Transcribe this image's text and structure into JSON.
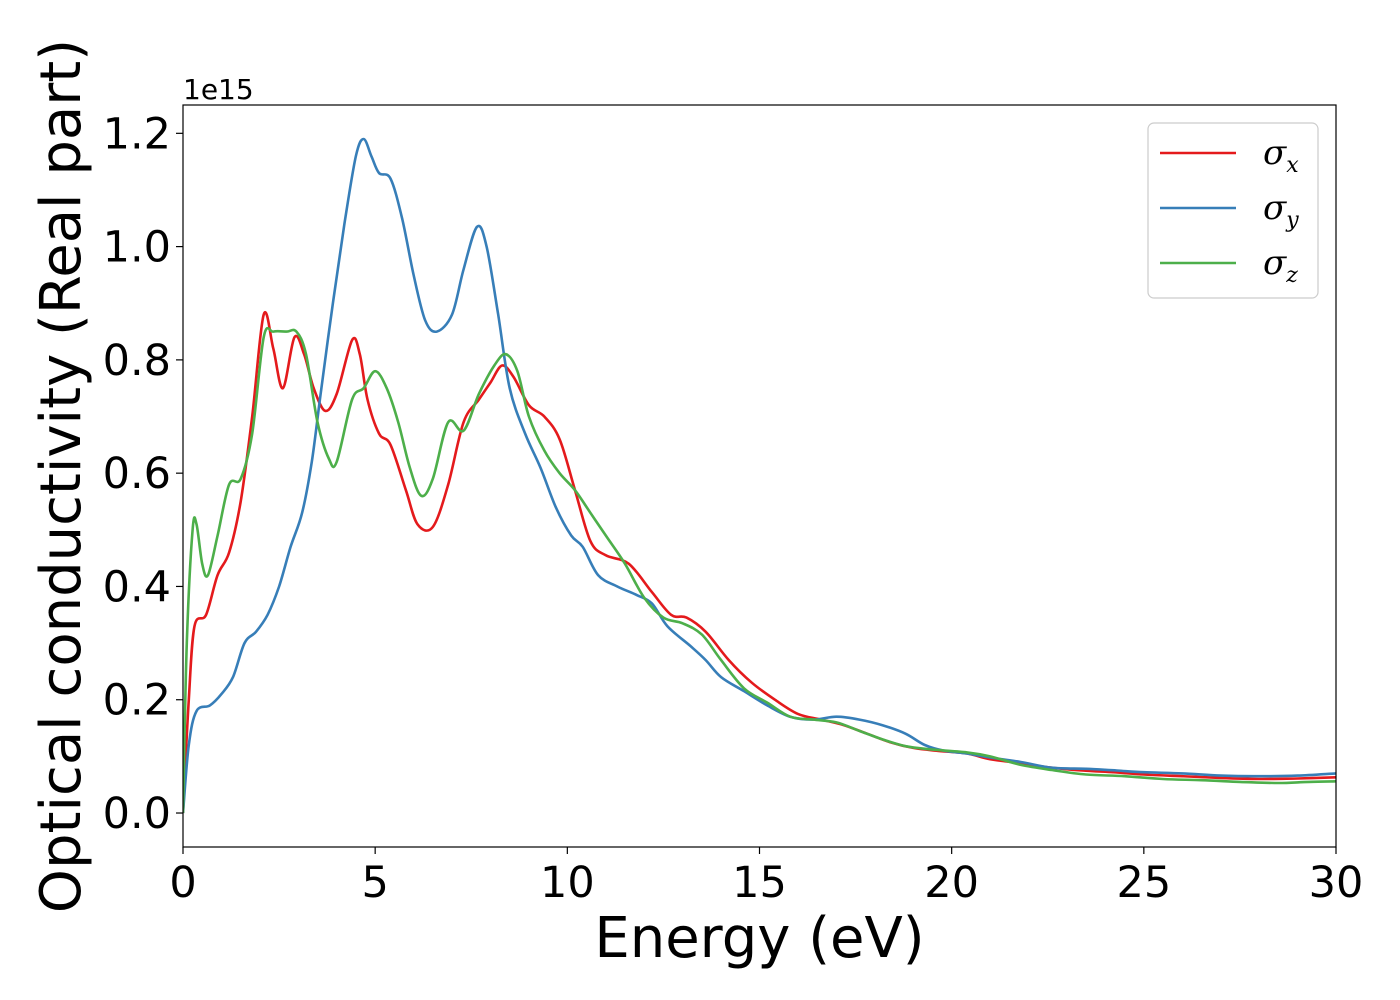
{
  "chart_data": {
    "type": "line",
    "xlabel": "Energy (eV)",
    "ylabel": "Optical conductivity (Real part)",
    "y_offset_label": "1e15",
    "xlim": [
      0,
      30
    ],
    "ylim": [
      -0.06,
      1.25
    ],
    "xticks": [
      0,
      5,
      10,
      15,
      20,
      25,
      30
    ],
    "yticks": [
      0.0,
      0.2,
      0.4,
      0.6,
      0.8,
      1.0,
      1.2
    ],
    "grid": false,
    "legend_position": "top-right",
    "series": [
      {
        "name": "σx",
        "symbol": "σ",
        "subscript": "x",
        "color": "#e41a1c",
        "points": [
          [
            0,
            0
          ],
          [
            0.15,
            0.2
          ],
          [
            0.3,
            0.33
          ],
          [
            0.6,
            0.35
          ],
          [
            0.9,
            0.42
          ],
          [
            1.2,
            0.46
          ],
          [
            1.5,
            0.55
          ],
          [
            1.8,
            0.7
          ],
          [
            2.1,
            0.88
          ],
          [
            2.35,
            0.82
          ],
          [
            2.6,
            0.75
          ],
          [
            2.9,
            0.84
          ],
          [
            3.15,
            0.81
          ],
          [
            3.4,
            0.75
          ],
          [
            3.7,
            0.71
          ],
          [
            4.0,
            0.74
          ],
          [
            4.4,
            0.835
          ],
          [
            4.6,
            0.81
          ],
          [
            4.8,
            0.73
          ],
          [
            5.1,
            0.67
          ],
          [
            5.4,
            0.65
          ],
          [
            5.8,
            0.57
          ],
          [
            6.1,
            0.51
          ],
          [
            6.5,
            0.505
          ],
          [
            6.9,
            0.58
          ],
          [
            7.3,
            0.69
          ],
          [
            7.7,
            0.73
          ],
          [
            8.0,
            0.76
          ],
          [
            8.3,
            0.79
          ],
          [
            8.6,
            0.77
          ],
          [
            9.0,
            0.72
          ],
          [
            9.4,
            0.7
          ],
          [
            9.8,
            0.66
          ],
          [
            10.2,
            0.57
          ],
          [
            10.6,
            0.48
          ],
          [
            11.0,
            0.455
          ],
          [
            11.6,
            0.44
          ],
          [
            12.2,
            0.39
          ],
          [
            12.7,
            0.35
          ],
          [
            13.1,
            0.345
          ],
          [
            13.6,
            0.32
          ],
          [
            14.2,
            0.27
          ],
          [
            14.8,
            0.23
          ],
          [
            15.4,
            0.2
          ],
          [
            16.0,
            0.175
          ],
          [
            16.6,
            0.165
          ],
          [
            17.2,
            0.155
          ],
          [
            17.8,
            0.14
          ],
          [
            18.4,
            0.125
          ],
          [
            19.0,
            0.115
          ],
          [
            19.6,
            0.11
          ],
          [
            20.4,
            0.105
          ],
          [
            21.0,
            0.095
          ],
          [
            21.8,
            0.088
          ],
          [
            22.6,
            0.08
          ],
          [
            23.4,
            0.075
          ],
          [
            24.2,
            0.072
          ],
          [
            25.0,
            0.068
          ],
          [
            26.0,
            0.065
          ],
          [
            27.0,
            0.062
          ],
          [
            28.0,
            0.06
          ],
          [
            29.0,
            0.061
          ],
          [
            30.0,
            0.063
          ]
        ]
      },
      {
        "name": "σy",
        "symbol": "σ",
        "subscript": "y",
        "color": "#377eb8",
        "points": [
          [
            0,
            0
          ],
          [
            0.15,
            0.12
          ],
          [
            0.35,
            0.18
          ],
          [
            0.7,
            0.19
          ],
          [
            1.0,
            0.21
          ],
          [
            1.3,
            0.24
          ],
          [
            1.6,
            0.3
          ],
          [
            1.9,
            0.32
          ],
          [
            2.2,
            0.35
          ],
          [
            2.5,
            0.4
          ],
          [
            2.8,
            0.47
          ],
          [
            3.1,
            0.53
          ],
          [
            3.35,
            0.62
          ],
          [
            3.6,
            0.75
          ],
          [
            3.9,
            0.9
          ],
          [
            4.2,
            1.04
          ],
          [
            4.5,
            1.16
          ],
          [
            4.7,
            1.19
          ],
          [
            4.9,
            1.16
          ],
          [
            5.1,
            1.13
          ],
          [
            5.4,
            1.12
          ],
          [
            5.7,
            1.05
          ],
          [
            6.0,
            0.95
          ],
          [
            6.3,
            0.87
          ],
          [
            6.6,
            0.85
          ],
          [
            7.0,
            0.88
          ],
          [
            7.3,
            0.96
          ],
          [
            7.65,
            1.035
          ],
          [
            7.9,
            1.0
          ],
          [
            8.2,
            0.88
          ],
          [
            8.5,
            0.75
          ],
          [
            8.9,
            0.67
          ],
          [
            9.3,
            0.61
          ],
          [
            9.7,
            0.54
          ],
          [
            10.1,
            0.49
          ],
          [
            10.4,
            0.47
          ],
          [
            10.8,
            0.42
          ],
          [
            11.3,
            0.4
          ],
          [
            11.8,
            0.385
          ],
          [
            12.2,
            0.37
          ],
          [
            12.6,
            0.33
          ],
          [
            13.2,
            0.295
          ],
          [
            13.6,
            0.27
          ],
          [
            14.0,
            0.24
          ],
          [
            14.6,
            0.215
          ],
          [
            15.2,
            0.19
          ],
          [
            15.8,
            0.17
          ],
          [
            16.4,
            0.165
          ],
          [
            17.0,
            0.17
          ],
          [
            17.6,
            0.165
          ],
          [
            18.2,
            0.155
          ],
          [
            18.8,
            0.14
          ],
          [
            19.3,
            0.12
          ],
          [
            19.8,
            0.11
          ],
          [
            20.4,
            0.105
          ],
          [
            21.0,
            0.098
          ],
          [
            21.8,
            0.09
          ],
          [
            22.6,
            0.08
          ],
          [
            23.5,
            0.078
          ],
          [
            24.3,
            0.075
          ],
          [
            25.0,
            0.072
          ],
          [
            26.0,
            0.07
          ],
          [
            27.0,
            0.066
          ],
          [
            28.0,
            0.065
          ],
          [
            29.0,
            0.066
          ],
          [
            30.0,
            0.07
          ]
        ]
      },
      {
        "name": "σz",
        "symbol": "σ",
        "subscript": "z",
        "color": "#4daf4a",
        "points": [
          [
            0,
            0
          ],
          [
            0.1,
            0.3
          ],
          [
            0.25,
            0.5
          ],
          [
            0.35,
            0.51
          ],
          [
            0.5,
            0.44
          ],
          [
            0.65,
            0.42
          ],
          [
            0.9,
            0.49
          ],
          [
            1.2,
            0.58
          ],
          [
            1.5,
            0.59
          ],
          [
            1.8,
            0.67
          ],
          [
            2.1,
            0.84
          ],
          [
            2.35,
            0.85
          ],
          [
            2.7,
            0.85
          ],
          [
            2.95,
            0.85
          ],
          [
            3.2,
            0.81
          ],
          [
            3.5,
            0.69
          ],
          [
            3.8,
            0.625
          ],
          [
            4.0,
            0.62
          ],
          [
            4.4,
            0.73
          ],
          [
            4.7,
            0.75
          ],
          [
            5.0,
            0.78
          ],
          [
            5.3,
            0.75
          ],
          [
            5.6,
            0.69
          ],
          [
            5.9,
            0.61
          ],
          [
            6.2,
            0.56
          ],
          [
            6.5,
            0.59
          ],
          [
            6.9,
            0.69
          ],
          [
            7.3,
            0.675
          ],
          [
            7.7,
            0.74
          ],
          [
            8.1,
            0.79
          ],
          [
            8.4,
            0.81
          ],
          [
            8.7,
            0.78
          ],
          [
            9.0,
            0.7
          ],
          [
            9.4,
            0.64
          ],
          [
            9.8,
            0.6
          ],
          [
            10.2,
            0.57
          ],
          [
            10.6,
            0.53
          ],
          [
            11.0,
            0.49
          ],
          [
            11.5,
            0.44
          ],
          [
            12.0,
            0.38
          ],
          [
            12.5,
            0.345
          ],
          [
            13.0,
            0.335
          ],
          [
            13.5,
            0.315
          ],
          [
            14.0,
            0.27
          ],
          [
            14.6,
            0.22
          ],
          [
            15.2,
            0.195
          ],
          [
            15.8,
            0.17
          ],
          [
            16.4,
            0.165
          ],
          [
            17.0,
            0.16
          ],
          [
            17.6,
            0.145
          ],
          [
            18.2,
            0.13
          ],
          [
            18.8,
            0.118
          ],
          [
            19.5,
            0.112
          ],
          [
            20.4,
            0.107
          ],
          [
            21.0,
            0.1
          ],
          [
            21.8,
            0.085
          ],
          [
            22.6,
            0.076
          ],
          [
            23.5,
            0.068
          ],
          [
            24.5,
            0.065
          ],
          [
            25.5,
            0.06
          ],
          [
            26.5,
            0.058
          ],
          [
            27.5,
            0.055
          ],
          [
            28.5,
            0.053
          ],
          [
            29.3,
            0.055
          ],
          [
            30.0,
            0.056
          ]
        ]
      }
    ]
  }
}
